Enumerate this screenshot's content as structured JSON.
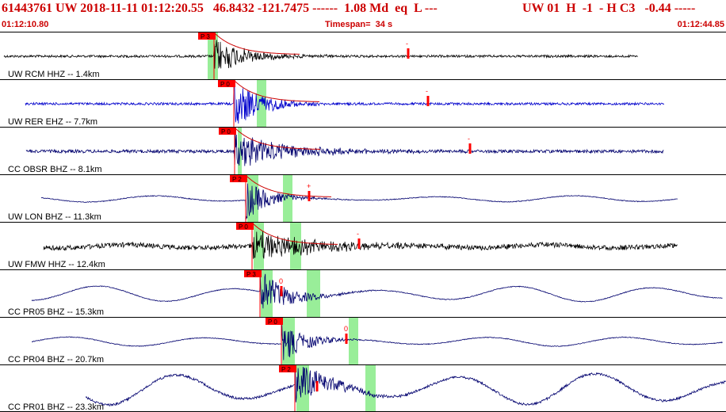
{
  "header": {
    "event_line": "61443761 UW 2018-11-11 01:12:20.55   46.8432 -121.7475 ------  1.08 Md  eq  L ---",
    "channel_info": "UW 01  H  -1  - H C3   -0.44 -----",
    "start_time": "01:12:10.80",
    "timespan": "Timespan=  34 s",
    "end_time": "01:12:44.85"
  },
  "colors": {
    "header_text": "#cc0000",
    "pick_flag": "#ff0000",
    "pick_window": "#99ee99",
    "coda_curve": "#cc0000",
    "trace_black": "#000000",
    "trace_blue": "#0000cc",
    "trace_navy": "#00006e"
  },
  "traces": [
    {
      "label": "UW RCM HHZ -- 1.4km",
      "pick": "P 3",
      "marker": "-",
      "color": "black",
      "p": 270,
      "win1": [
        262,
        275
      ],
      "extra": [
        515
      ],
      "amp_mark": [
        515
      ],
      "start": 5,
      "end": 805,
      "noise": 1.5,
      "burst": 15,
      "decay": 40,
      "coda": true
    },
    {
      "label": "UW RER EHZ -- 7.7km",
      "pick": "P 0",
      "marker": "-",
      "color": "blue",
      "p": 295,
      "win1": [
        324,
        336
      ],
      "extra": [
        540
      ],
      "amp_mark": [
        540
      ],
      "start": 32,
      "end": 838,
      "noise": 1.5,
      "burst": 20,
      "decay": 35,
      "coda": true
    },
    {
      "label": "CC OBSR BHZ -- 8.1km",
      "pick": "P 0",
      "marker": "-",
      "color": "navy",
      "p": 296,
      "win1": [
        300,
        305
      ],
      "extra": [
        593
      ],
      "amp_mark": [
        593
      ],
      "start": 33,
      "end": 838,
      "noise": 2,
      "burst": 14,
      "decay": 70,
      "coda": true
    },
    {
      "label": "UW LON BHZ -- 11.3km",
      "pick": "P 2",
      "marker": "+",
      "color": "navy",
      "p": 310,
      "win1": [
        312,
        326
      ],
      "win2": [
        357,
        369
      ],
      "amp_mark": [
        390
      ],
      "start": 52,
      "end": 855,
      "noise": 0.5,
      "wave": 4,
      "burst": 16,
      "decay": 30,
      "coda": true
    },
    {
      "label": "UW FMW HHZ -- 12.4km",
      "pick": "P 0",
      "marker": "-",
      "color": "black",
      "p": 318,
      "win1": [
        320,
        333
      ],
      "win2": [
        366,
        380
      ],
      "amp_mark": [
        453
      ],
      "start": 55,
      "end": 855,
      "noise": 3,
      "wave": 2,
      "burst": 12,
      "decay": 80,
      "coda": true
    },
    {
      "label": "CC PR05 BHZ -- 15.3km",
      "pick": "P 3",
      "marker": "0",
      "color": "navy",
      "p": 328,
      "win1": [
        329,
        344
      ],
      "win2": [
        387,
        404
      ],
      "amp_mark": [
        355
      ],
      "start": 40,
      "end": 912,
      "noise": 0.5,
      "wave": 10,
      "burst": 18,
      "decay": 35,
      "coda": false
    },
    {
      "label": "CC PR04 BHZ -- 20.7km",
      "pick": "P 0",
      "marker": "0",
      "color": "navy",
      "p": 355,
      "win1": [
        356,
        372
      ],
      "win2": [
        440,
        452
      ],
      "amp_mark": [
        437
      ],
      "start": 40,
      "end": 912,
      "noise": 0.5,
      "wave": 6,
      "burst": 16,
      "decay": 30,
      "coda": false
    },
    {
      "label": "CC PR01 BHZ -- 23.3km",
      "pick": "P 2",
      "marker": "",
      "color": "navy",
      "p": 372,
      "win1": [
        374,
        390
      ],
      "win2": [
        461,
        474
      ],
      "amp_mark": [
        400
      ],
      "start": 108,
      "end": 916,
      "noise": 1.5,
      "wave": 20,
      "burst": 18,
      "decay": 40,
      "coda": false
    }
  ]
}
